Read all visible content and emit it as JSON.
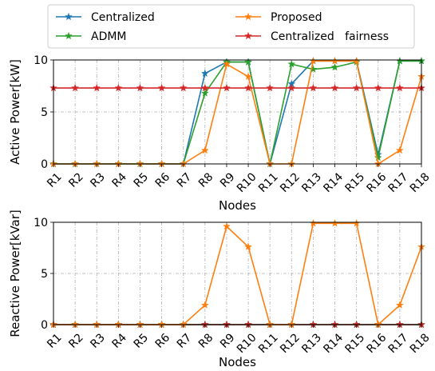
{
  "chart_data": [
    {
      "type": "line",
      "xlabel": "Nodes",
      "ylabel": "Active Power[kW]",
      "categories": [
        "R1",
        "R2",
        "R3",
        "R4",
        "R5",
        "R6",
        "R7",
        "R8",
        "R9",
        "R10",
        "R11",
        "R12",
        "R13",
        "R14",
        "R15",
        "R16",
        "R17",
        "R18"
      ],
      "ylim": [
        0,
        10
      ],
      "yticks": [
        "0",
        "5",
        "10"
      ],
      "grid": true,
      "series": [
        {
          "name": "Centralized",
          "color": "#1f77b4",
          "marker": "star",
          "values": [
            0,
            0,
            0,
            0,
            0,
            0,
            0,
            8.7,
            9.8,
            9.8,
            0,
            7.7,
            9.9,
            9.9,
            9.9,
            0.9,
            9.9,
            9.9
          ]
        },
        {
          "name": "ADMM",
          "color": "#2ca02c",
          "marker": "star",
          "values": [
            0,
            0,
            0,
            0,
            0,
            0,
            0,
            6.8,
            9.8,
            9.8,
            0,
            9.6,
            9.1,
            9.3,
            9.8,
            0.6,
            9.9,
            9.9
          ]
        },
        {
          "name": "Proposed",
          "color": "#ff7f0e",
          "marker": "star",
          "values": [
            0,
            0,
            0,
            0,
            0,
            0,
            0,
            1.3,
            9.6,
            8.4,
            0,
            0,
            9.9,
            9.9,
            9.9,
            0,
            1.3,
            8.4
          ]
        },
        {
          "name": "Centralized   fairness",
          "color": "#d62728",
          "marker": "star",
          "values": [
            7.3,
            7.3,
            7.3,
            7.3,
            7.3,
            7.3,
            7.3,
            7.3,
            7.3,
            7.3,
            7.3,
            7.3,
            7.3,
            7.3,
            7.3,
            7.3,
            7.3,
            7.3
          ]
        }
      ]
    },
    {
      "type": "line",
      "xlabel": "Nodes",
      "ylabel": "Reactive Power[kVar]",
      "categories": [
        "R1",
        "R2",
        "R3",
        "R4",
        "R5",
        "R6",
        "R7",
        "R8",
        "R9",
        "R10",
        "R11",
        "R12",
        "R13",
        "R14",
        "R15",
        "R16",
        "R17",
        "R18"
      ],
      "ylim": [
        0,
        10
      ],
      "yticks": [
        "0",
        "5",
        "10"
      ],
      "grid": true,
      "series": [
        {
          "name": "Centralized",
          "color": "#1f77b4",
          "marker": "star",
          "values": [
            0,
            0,
            0,
            0,
            0,
            0,
            0,
            0,
            0,
            0,
            0,
            0,
            0,
            0,
            0,
            0,
            0,
            0
          ]
        },
        {
          "name": "ADMM",
          "color": "#2ca02c",
          "marker": "star",
          "values": [
            0,
            0,
            0,
            0,
            0,
            0,
            0,
            0,
            0,
            0,
            0,
            0,
            0,
            0,
            0,
            0,
            0,
            0
          ]
        },
        {
          "name": "Centralized   fairness",
          "color": "#d62728",
          "marker": "star",
          "values": [
            0,
            0,
            0,
            0,
            0,
            0,
            0,
            0,
            0,
            0,
            0,
            0,
            0,
            0,
            0,
            0,
            0,
            0
          ]
        },
        {
          "name": "Proposed",
          "color": "#ff7f0e",
          "marker": "star",
          "values": [
            0,
            0,
            0,
            0,
            0,
            0,
            0,
            1.9,
            9.6,
            7.6,
            0,
            0,
            9.9,
            9.9,
            9.9,
            0,
            1.9,
            7.6
          ]
        }
      ]
    }
  ],
  "legend": {
    "placement": "top",
    "entries": [
      {
        "label": "Centralized",
        "color": "#1f77b4"
      },
      {
        "label": "Proposed",
        "color": "#ff7f0e"
      },
      {
        "label": "ADMM",
        "color": "#2ca02c"
      },
      {
        "label": "Centralized   fairness",
        "color": "#d62728"
      }
    ]
  }
}
